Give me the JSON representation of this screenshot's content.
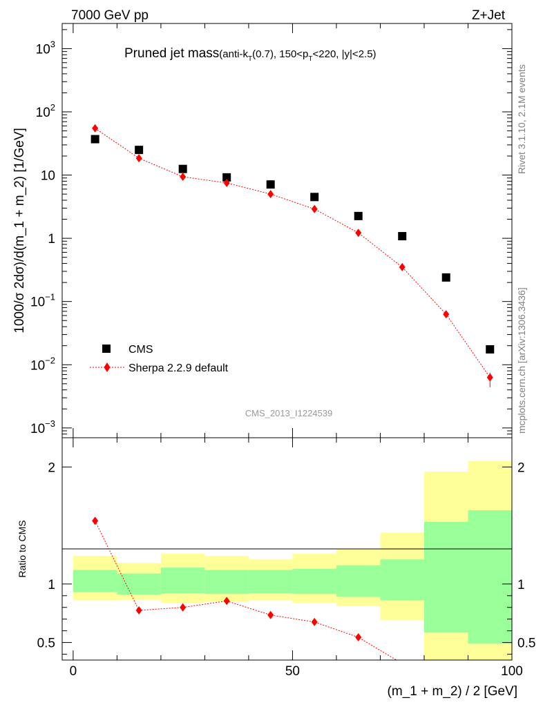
{
  "header": {
    "energy_label": "7000 GeV pp",
    "process_label": "Z+Jet"
  },
  "side_labels": {
    "rivet": "Rivet 3.1.10,  2.1M events",
    "source": "mcplots.cern.ch [arXiv:1306.3436]"
  },
  "chart_data": [
    {
      "type": "scatter",
      "panel": "main",
      "title_main": "Pruned jet mass",
      "title_sub_parts": [
        "(anti-k",
        "T",
        "(0.7), 150<p",
        "T",
        "<220, |y|<2.5)"
      ],
      "ylabel": "1000/σ 2dσ)/d(m_1 + m_2) [1/GeV]",
      "yscale": "log",
      "ylim": [
        0.0007,
        2500
      ],
      "xlim": [
        -2.5,
        100
      ],
      "ytick_labels": [
        {
          "value": 0.001,
          "base": "10",
          "exp": "−3"
        },
        {
          "value": 0.01,
          "base": "10",
          "exp": "−2"
        },
        {
          "value": 0.1,
          "base": "10",
          "exp": "−1"
        },
        {
          "value": 1,
          "base": "1",
          "exp": ""
        },
        {
          "value": 10,
          "base": "10",
          "exp": ""
        },
        {
          "value": 100,
          "base": "10",
          "exp": "2"
        },
        {
          "value": 1000,
          "base": "10",
          "exp": "3"
        }
      ],
      "watermark": "CMS_2013_I1224539",
      "legend_position": "lower-left",
      "series": [
        {
          "name": "CMS",
          "marker": "square",
          "color": "#000000",
          "x": [
            5,
            15,
            25,
            35,
            45,
            55,
            65,
            75,
            85,
            95
          ],
          "y": [
            37,
            25,
            12.5,
            9.2,
            7.1,
            4.5,
            2.25,
            1.08,
            0.24,
            0.0175
          ]
        },
        {
          "name": "Sherpa 2.2.9 default",
          "marker": "diamond",
          "color": "#ff0000",
          "line": "dotted",
          "x": [
            5,
            15,
            25,
            35,
            45,
            55,
            65,
            75,
            85,
            95
          ],
          "y": [
            55,
            18.5,
            9.4,
            7.5,
            5.0,
            2.9,
            1.22,
            0.35,
            0.063,
            0.0063
          ],
          "yerr_low": [
            0,
            0,
            0,
            0,
            0,
            0,
            0,
            0,
            0,
            0.0019
          ],
          "yerr_high": [
            0,
            0,
            0,
            0,
            0,
            0,
            0,
            0,
            0,
            0.0012
          ]
        }
      ]
    },
    {
      "type": "scatter",
      "panel": "ratio",
      "ylabel": "Ratio to CMS",
      "xlabel": "(m_1 + m_2) / 2 [GeV]",
      "xlim": [
        -2.5,
        100
      ],
      "ylim": [
        0.35,
        2.25
      ],
      "xticks": [
        0,
        50,
        100
      ],
      "yticks": [
        0.5,
        1,
        2
      ],
      "ytick_labels": [
        "0.5",
        "1",
        "2"
      ],
      "bands": {
        "bin_edges": [
          0,
          10,
          20,
          30,
          40,
          50,
          60,
          70,
          80,
          90,
          100
        ],
        "total_lo": [
          0.86,
          0.865,
          0.84,
          0.85,
          0.86,
          0.84,
          0.81,
          0.69,
          0.3,
          0.3
        ],
        "total_hi": [
          1.24,
          1.18,
          1.26,
          1.24,
          1.21,
          1.26,
          1.3,
          1.44,
          1.96,
          2.05
        ],
        "stat_lo": [
          0.93,
          0.91,
          0.92,
          0.915,
          0.92,
          0.915,
          0.89,
          0.86,
          0.585,
          0.49
        ],
        "stat_hi": [
          1.12,
          1.09,
          1.14,
          1.12,
          1.12,
          1.13,
          1.16,
          1.21,
          1.53,
          1.63
        ],
        "total_color": "#ffff99",
        "stat_color": "#99ff99"
      },
      "series": [
        {
          "name": "Sherpa 2.2.9 default",
          "marker": "diamond",
          "color": "#ff0000",
          "line": "dotted",
          "x": [
            5,
            15,
            25,
            35,
            45,
            55,
            65,
            75
          ],
          "y": [
            1.54,
            0.775,
            0.8,
            0.855,
            0.735,
            0.675,
            0.545,
            0.32
          ]
        }
      ]
    }
  ]
}
